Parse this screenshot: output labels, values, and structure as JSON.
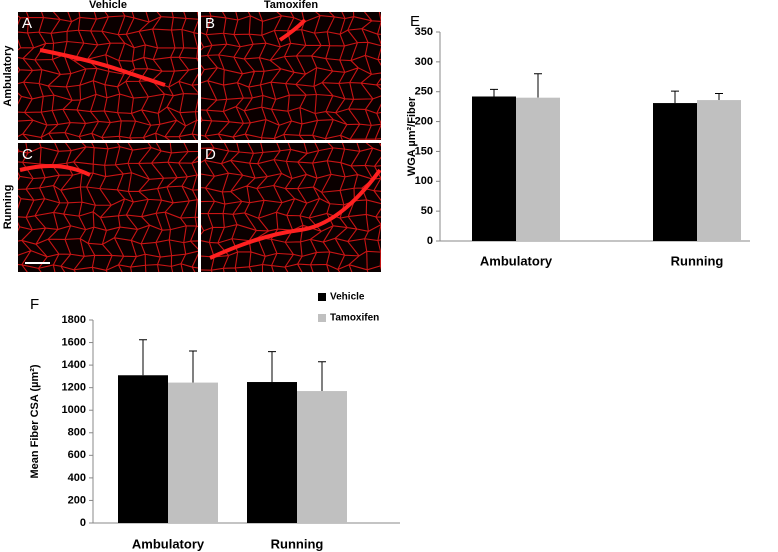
{
  "micrographs": {
    "columns": [
      "Vehicle",
      "Tamoxifen"
    ],
    "rows": [
      "Ambulatory",
      "Running"
    ],
    "panels": [
      "A",
      "B",
      "C",
      "D"
    ]
  },
  "chart_data": [
    {
      "type": "bar",
      "panel": "E",
      "y_label": "WGA µm²/Fiber",
      "categories": [
        "Ambulatory",
        "Running"
      ],
      "series": [
        {
          "color": "#000000",
          "values": [
            242,
            231
          ],
          "errors": [
            12,
            20
          ]
        },
        {
          "color": "#c0c0c0",
          "values": [
            240,
            236
          ],
          "errors": [
            40,
            11
          ]
        }
      ],
      "ylim": [
        0,
        350
      ],
      "yticks": [
        0,
        50,
        100,
        150,
        200,
        250,
        300,
        350
      ],
      "grid": false
    },
    {
      "type": "bar",
      "panel": "F",
      "y_label": "Mean Fiber CSA (µm²)",
      "categories": [
        "Ambulatory",
        "Running"
      ],
      "series": [
        {
          "name": "Vehicle",
          "color": "#000000",
          "values": [
            1310,
            1250
          ],
          "errors": [
            315,
            270
          ]
        },
        {
          "name": "Tamoxifen",
          "color": "#c0c0c0",
          "values": [
            1245,
            1170
          ],
          "errors": [
            280,
            260
          ]
        }
      ],
      "ylim": [
        0,
        1800
      ],
      "yticks": [
        0,
        200,
        400,
        600,
        800,
        1000,
        1200,
        1400,
        1600,
        1800
      ],
      "grid": false,
      "legend": "top-right"
    }
  ]
}
